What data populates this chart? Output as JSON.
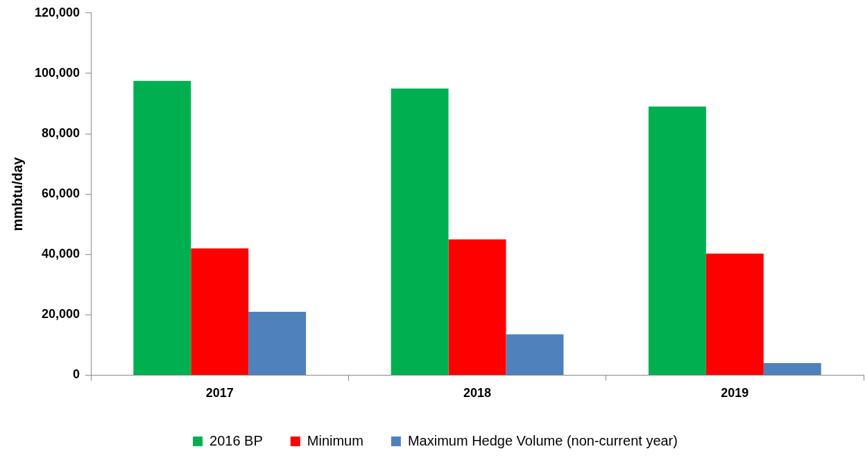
{
  "chart_data": {
    "type": "bar",
    "ylabel": "mmbtu/day",
    "categories": [
      "2017",
      "2018",
      "2019"
    ],
    "series": [
      {
        "name": "2016 BP",
        "color": "#00b050",
        "values": [
          97500,
          95000,
          89000
        ]
      },
      {
        "name": "Minimum",
        "color": "#ff0000",
        "values": [
          42000,
          45000,
          40300
        ]
      },
      {
        "name": "Maximum Hedge Volume (non-current year)",
        "color": "#4f81bd",
        "values": [
          21000,
          13500,
          4000
        ]
      }
    ],
    "ylim": [
      0,
      120000
    ],
    "yticks": [
      0,
      {
        "value": 20000,
        "label": "20,000"
      },
      {
        "value": 40000,
        "label": "40,000"
      },
      {
        "value": 60000,
        "label": "60,000"
      },
      {
        "value": 80000,
        "label": "80,000"
      },
      {
        "value": 100000,
        "label": "100,000"
      },
      {
        "value": 120000,
        "label": "120,000"
      }
    ],
    "grid": false,
    "legend": "bottom"
  }
}
